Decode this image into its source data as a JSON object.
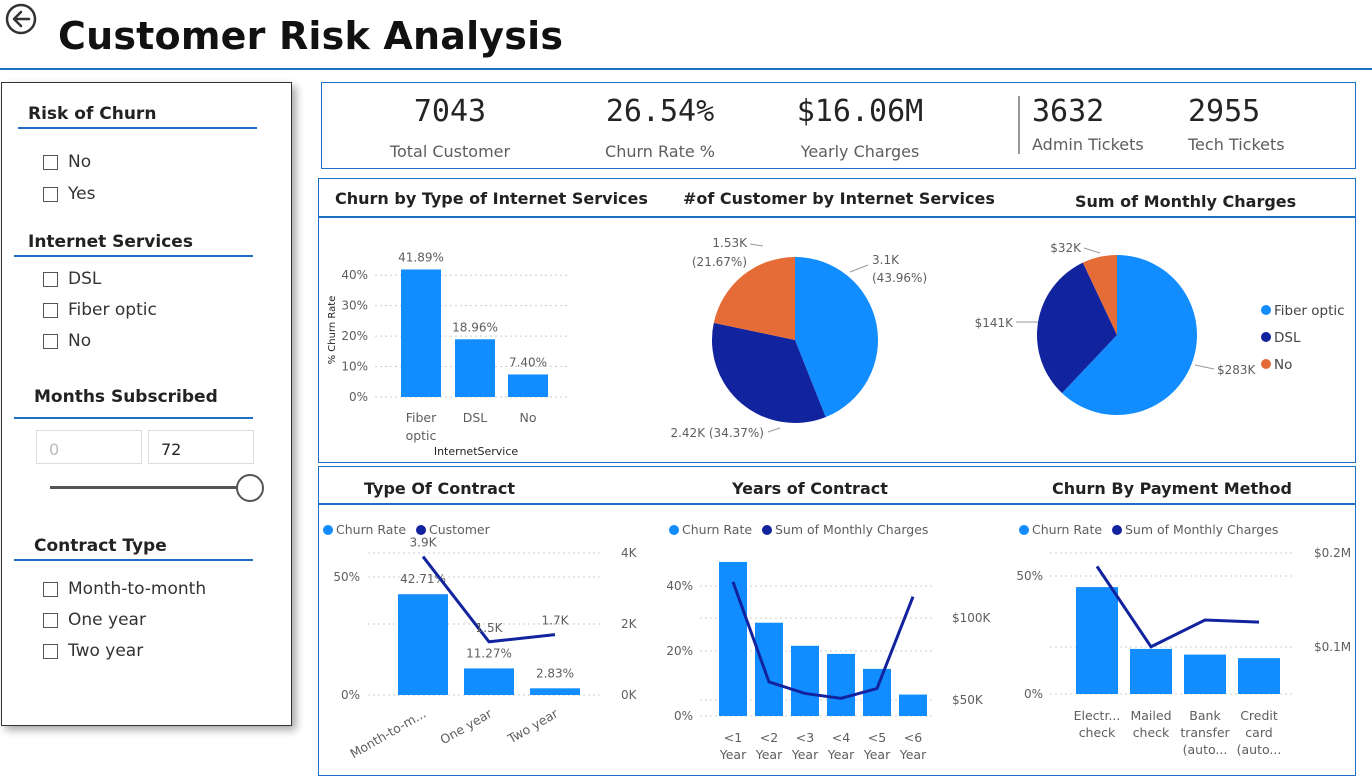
{
  "page": {
    "title": "Customer Risk Analysis"
  },
  "icons": {
    "back": "back-arrow-icon"
  },
  "colors": {
    "accent": "#1f6fc5",
    "fiber": "#118dff",
    "dsl": "#12239e",
    "no": "#e66c37",
    "line": "#12239e"
  },
  "filters": {
    "risk": {
      "title": "Risk of Churn",
      "options": [
        "No",
        "Yes"
      ]
    },
    "internet": {
      "title": "Internet Services",
      "options": [
        "DSL",
        "Fiber optic",
        "No"
      ]
    },
    "months": {
      "title": "Months Subscribed",
      "min_value": "0",
      "max_value": "72"
    },
    "contract": {
      "title": "Contract Type",
      "options": [
        "Month-to-month",
        "One year",
        "Two year"
      ]
    }
  },
  "kpis": {
    "total_customer": {
      "value": "7043",
      "label": "Total Customer"
    },
    "churn_rate": {
      "value": "26.54%",
      "label": "Churn Rate %"
    },
    "yearly_charges": {
      "value": "$16.06M",
      "label": "Yearly Charges"
    },
    "admin_tickets": {
      "value": "3632",
      "label": "Admin Tickets"
    },
    "tech_tickets": {
      "value": "2955",
      "label": "Tech Tickets"
    }
  },
  "chart_data": [
    {
      "id": "churn_by_internet",
      "type": "bar",
      "title": "Churn by Type of Internet Services",
      "xlabel": "InternetService",
      "ylabel": "% Churn Rate",
      "categories": [
        "Fiber optic",
        "DSL",
        "No"
      ],
      "values": [
        41.89,
        18.96,
        7.4
      ],
      "data_labels": [
        "41.89%",
        "18.96%",
        "7.40%"
      ],
      "yticks": [
        "0%",
        "10%",
        "20%",
        "30%",
        "40%"
      ],
      "ylim": [
        0,
        45
      ]
    },
    {
      "id": "customers_by_internet",
      "type": "pie",
      "title": "#of Customer by Internet Services",
      "slices": [
        {
          "name": "Fiber optic",
          "value": 3.1,
          "label": "3.1K",
          "pct": "(43.96%)",
          "color": "#118dff"
        },
        {
          "name": "DSL",
          "value": 2.42,
          "label": "2.42K (34.37%)",
          "color": "#12239e"
        },
        {
          "name": "No",
          "value": 1.53,
          "label": "1.53K",
          "pct": "(21.67%)",
          "color": "#e66c37"
        }
      ]
    },
    {
      "id": "monthly_charges",
      "type": "pie",
      "title": "Sum of Monthly Charges",
      "slices": [
        {
          "name": "Fiber optic",
          "value": 283,
          "label": "$283K",
          "color": "#118dff"
        },
        {
          "name": "DSL",
          "value": 141,
          "label": "$141K",
          "color": "#12239e"
        },
        {
          "name": "No",
          "value": 32,
          "label": "$32K",
          "color": "#e66c37"
        }
      ],
      "legend": [
        "Fiber optic",
        "DSL",
        "No"
      ]
    },
    {
      "id": "type_of_contract",
      "type": "bar",
      "title": "Type Of Contract",
      "legend": [
        "Churn Rate",
        "Customer"
      ],
      "categories": [
        "Month-to-m...",
        "One year",
        "Two year"
      ],
      "series": [
        {
          "name": "Churn Rate",
          "values": [
            42.71,
            11.27,
            2.83
          ],
          "labels": [
            "42.71%",
            "11.27%",
            "2.83%"
          ]
        },
        {
          "name": "Customer",
          "values": [
            3.9,
            1.5,
            1.7
          ],
          "labels": [
            "3.9K",
            "1.5K",
            "1.7K"
          ]
        }
      ],
      "yticks_left": [
        "0%",
        "50%"
      ],
      "yticks_right": [
        "0K",
        "2K",
        "4K"
      ]
    },
    {
      "id": "years_of_contract",
      "type": "bar",
      "title": "Years of Contract",
      "legend": [
        "Churn Rate",
        "Sum of Monthly Charges"
      ],
      "categories": [
        "<1 Year",
        "<2 Year",
        "<3 Year",
        "<4 Year",
        "<5 Year",
        "<6 Year"
      ],
      "series": [
        {
          "name": "Churn Rate",
          "values": [
            47.4,
            28.7,
            21.6,
            19.1,
            14.5,
            6.6
          ]
        },
        {
          "name": "Sum of Monthly Charges",
          "values": [
            122000,
            61000,
            54000,
            51000,
            57000,
            113000
          ]
        }
      ],
      "yticks_left": [
        "0%",
        "20%",
        "40%"
      ],
      "yticks_right": [
        "$50K",
        "$100K"
      ]
    },
    {
      "id": "churn_by_payment",
      "type": "bar",
      "title": "Churn By Payment Method",
      "legend": [
        "Churn Rate",
        "Sum of Monthly Charges"
      ],
      "categories": [
        "Electr... check",
        "Mailed check",
        "Bank transfer (auto...",
        "Credit card (auto..."
      ],
      "series": [
        {
          "name": "Churn Rate",
          "values": [
            45.3,
            19.1,
            16.7,
            15.2
          ]
        },
        {
          "name": "Sum of Monthly Charges",
          "values": [
            0.181,
            0.067,
            0.105,
            0.102
          ]
        }
      ],
      "yticks_left": [
        "0%",
        "50%"
      ],
      "yticks_right": [
        "$0.1M",
        "$0.2M"
      ]
    }
  ]
}
